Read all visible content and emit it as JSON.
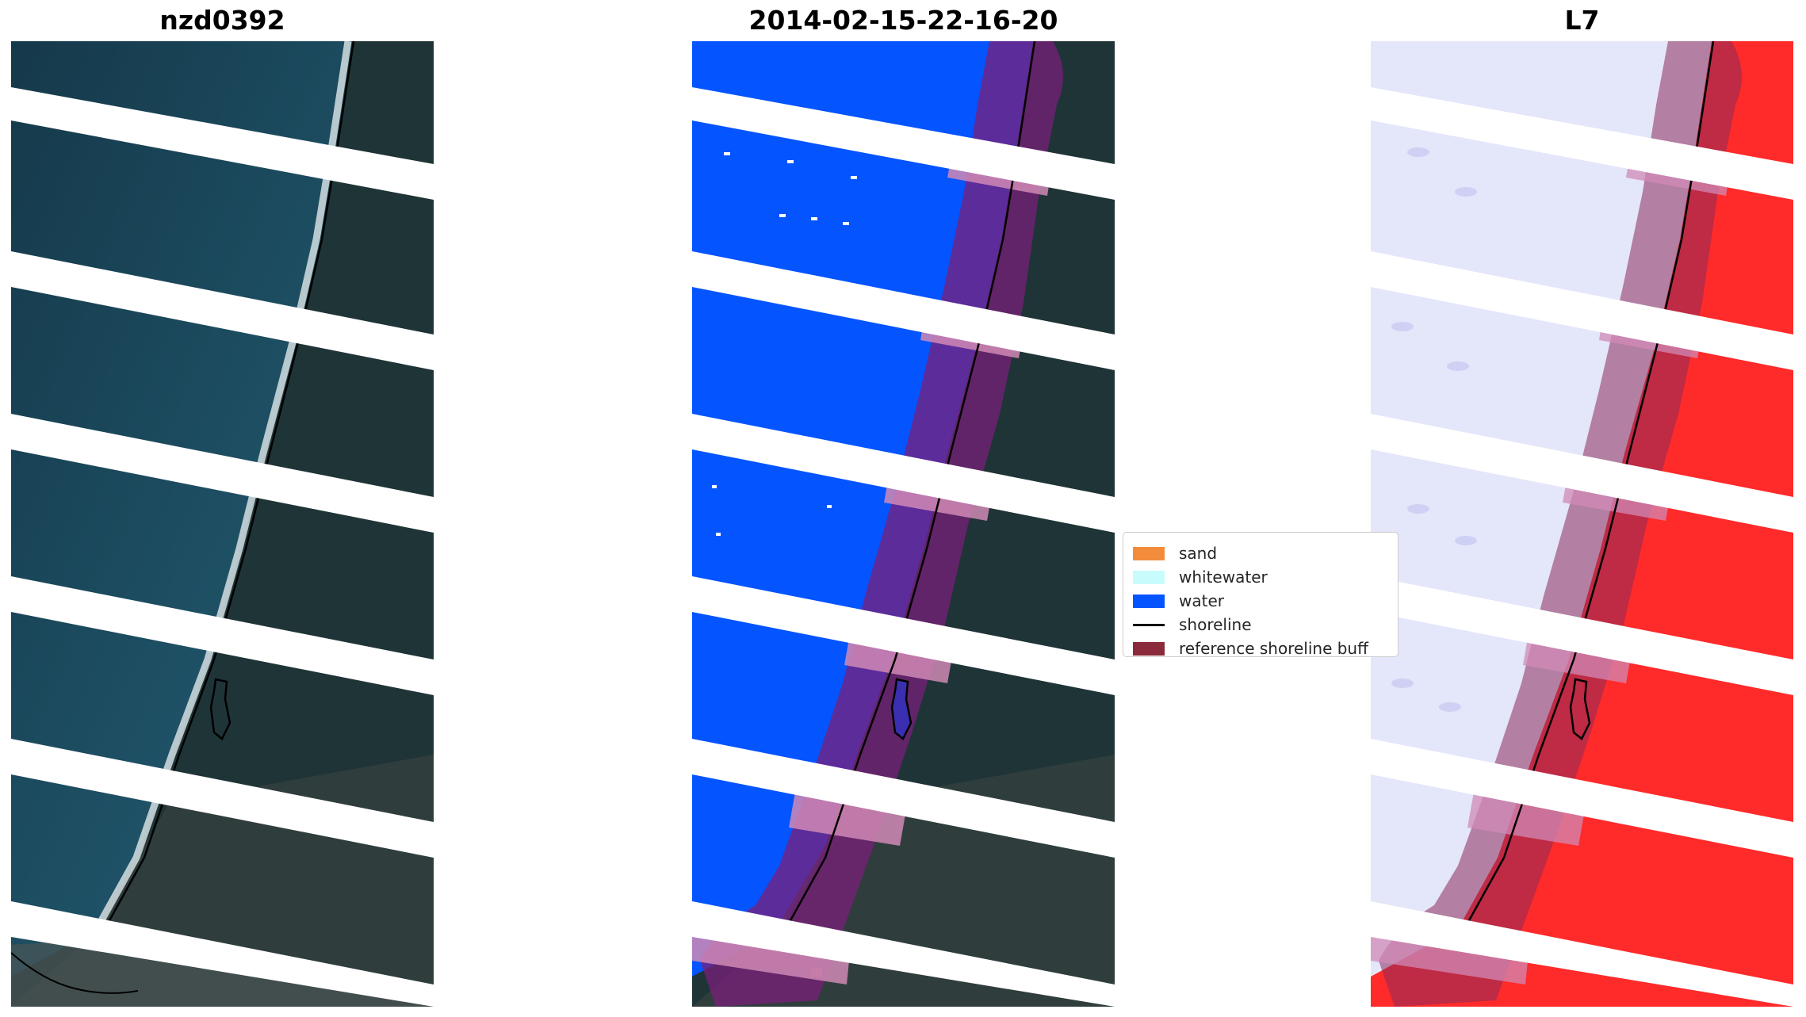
{
  "titles": {
    "left": "nzd0392",
    "center": "2014-02-15-22-16-20",
    "right": "L7"
  },
  "legend": {
    "items": [
      {
        "label": "sand",
        "kind": "patch",
        "color": "#f28c3a"
      },
      {
        "label": "whitewater",
        "kind": "patch",
        "color": "#c8fbfb"
      },
      {
        "label": "water",
        "kind": "patch",
        "color": "#0454ff"
      },
      {
        "label": "shoreline",
        "kind": "line",
        "color": "#000000"
      },
      {
        "label": "reference shoreline buff",
        "kind": "patch",
        "color": "#8b2a3a"
      }
    ]
  },
  "colors": {
    "ocean": "#1e4f63",
    "land": "#1f3437",
    "water_class": "#0454ff",
    "buffer": "#8b2a5a",
    "buffer_stripe": "#c86a9a",
    "index_low": "#e4e6fa",
    "index_high": "#ff2a2a"
  }
}
